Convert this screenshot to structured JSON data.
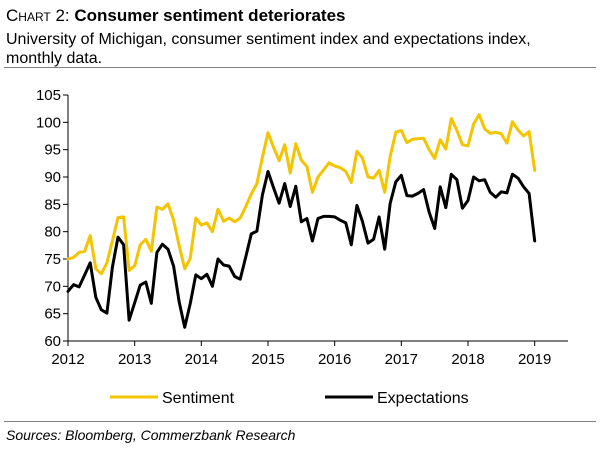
{
  "header": {
    "chart_label": "Chart 2:",
    "title": "Consumer sentiment deteriorates",
    "subtitle": "University of Michigan, consumer sentiment index and expectations index, monthly data."
  },
  "source": "Sources: Bloomberg, Commerzbank Research",
  "colors": {
    "sentiment": "#F5C400",
    "expectations": "#000000",
    "axis": "#000000"
  },
  "chart_data": {
    "type": "line",
    "title": "Consumer sentiment deteriorates",
    "xlabel": "",
    "ylabel": "",
    "xlim": [
      2012,
      2019.5
    ],
    "ylim": [
      60,
      105
    ],
    "yticks": [
      60,
      65,
      70,
      75,
      80,
      85,
      90,
      95,
      100,
      105
    ],
    "xticks": [
      2012,
      2013,
      2014,
      2015,
      2016,
      2017,
      2018,
      2019
    ],
    "grid": false,
    "legend_position": "bottom",
    "x_start": 2012.0,
    "x_step_months": 1,
    "series": [
      {
        "name": "Sentiment",
        "color": "#F5C400",
        "values": [
          75.0,
          75.3,
          76.2,
          76.4,
          79.3,
          73.2,
          72.3,
          74.3,
          78.3,
          82.6,
          82.7,
          72.9,
          73.8,
          77.6,
          78.6,
          76.4,
          84.5,
          84.1,
          85.1,
          82.1,
          77.5,
          73.2,
          75.1,
          82.5,
          81.2,
          81.6,
          80.0,
          84.1,
          81.9,
          82.5,
          81.8,
          82.5,
          84.6,
          86.9,
          88.8,
          93.6,
          98.1,
          95.4,
          93.0,
          95.9,
          90.7,
          96.1,
          93.1,
          91.9,
          87.2,
          90.0,
          91.3,
          92.6,
          92.0,
          91.7,
          91.0,
          89.0,
          94.7,
          93.5,
          90.0,
          89.8,
          91.2,
          87.2,
          93.8,
          98.2,
          98.5,
          96.3,
          96.9,
          97.0,
          97.1,
          95.0,
          93.4,
          96.8,
          95.1,
          100.7,
          98.5,
          95.9,
          95.7,
          99.7,
          101.4,
          98.8,
          98.0,
          98.2,
          97.9,
          96.2,
          100.1,
          98.6,
          97.5,
          98.3,
          91.2
        ]
      },
      {
        "name": "Expectations",
        "color": "#000000",
        "values": [
          69.1,
          70.3,
          69.9,
          72.1,
          74.3,
          68.0,
          65.7,
          65.1,
          73.5,
          79.0,
          77.6,
          63.8,
          67.0,
          70.2,
          70.8,
          66.9,
          76.2,
          77.7,
          76.8,
          73.7,
          67.2,
          62.5,
          66.8,
          72.1,
          71.4,
          72.2,
          70.0,
          75.0,
          73.9,
          73.7,
          71.8,
          71.3,
          75.4,
          79.6,
          80.1,
          86.7,
          91.0,
          88.0,
          85.2,
          88.8,
          84.6,
          88.3,
          81.8,
          82.4,
          78.3,
          82.4,
          82.8,
          82.8,
          82.7,
          82.1,
          81.6,
          77.6,
          84.8,
          81.9,
          77.9,
          78.6,
          82.7,
          76.8,
          85.2,
          89.1,
          90.3,
          86.6,
          86.5,
          87.0,
          87.7,
          83.6,
          80.6,
          88.2,
          84.4,
          90.5,
          89.5,
          84.3,
          85.7,
          90.0,
          89.3,
          89.5,
          87.2,
          86.3,
          87.3,
          87.1,
          90.5,
          89.8,
          88.2,
          87.0,
          78.3
        ]
      }
    ]
  }
}
